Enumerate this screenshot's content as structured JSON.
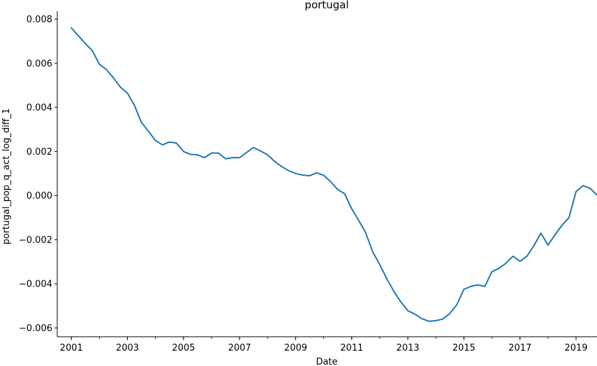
{
  "chart_data": {
    "type": "line",
    "title": "portugal",
    "xlabel": "Date",
    "ylabel": "portugal_pop_q_act_log_diff_1",
    "xlim": [
      "2000-07-01",
      "2019-10-01"
    ],
    "ylim": [
      -0.0064,
      0.0083
    ],
    "xticks": [
      "2001",
      "2003",
      "2005",
      "2007",
      "2009",
      "2011",
      "2013",
      "2015",
      "2017",
      "2019"
    ],
    "yticks": [
      "−0.006",
      "−0.004",
      "−0.002",
      "0.000",
      "0.002",
      "0.004",
      "0.006",
      "0.008"
    ],
    "grid": false,
    "line_color": "#1f77b4",
    "series": [
      {
        "x": [
          "2001-01-01",
          "2001-04-01",
          "2001-07-01",
          "2001-10-01",
          "2002-01-01",
          "2002-04-01",
          "2002-07-01",
          "2002-10-01",
          "2003-01-01",
          "2003-04-01",
          "2003-07-01",
          "2003-10-01",
          "2004-01-01",
          "2004-04-01",
          "2004-07-01",
          "2004-10-01",
          "2005-01-01",
          "2005-04-01",
          "2005-07-01",
          "2005-10-01",
          "2006-01-01",
          "2006-04-01",
          "2006-07-01",
          "2006-10-01",
          "2007-01-01",
          "2007-04-01",
          "2007-07-01",
          "2007-10-01",
          "2008-01-01",
          "2008-04-01",
          "2008-07-01",
          "2008-10-01",
          "2009-01-01",
          "2009-04-01",
          "2009-07-01",
          "2009-10-01",
          "2010-01-01",
          "2010-04-01",
          "2010-07-01",
          "2010-10-01",
          "2011-01-01",
          "2011-04-01",
          "2011-07-01",
          "2011-10-01",
          "2012-01-01",
          "2012-04-01",
          "2012-07-01",
          "2012-10-01",
          "2013-01-01",
          "2013-04-01",
          "2013-07-01",
          "2013-10-01",
          "2014-01-01",
          "2014-04-01",
          "2014-07-01",
          "2014-10-01",
          "2015-01-01",
          "2015-04-01",
          "2015-07-01",
          "2015-10-01",
          "2016-01-01",
          "2016-04-01",
          "2016-07-01",
          "2016-10-01",
          "2017-01-01",
          "2017-04-01",
          "2017-07-01",
          "2017-10-01",
          "2018-01-01",
          "2018-04-01",
          "2018-07-01",
          "2018-10-01",
          "2019-01-01",
          "2019-04-01",
          "2019-07-01",
          "2019-10-01"
        ],
        "values": [
          0.0076,
          0.00725,
          0.0069,
          0.00657,
          0.00595,
          0.00572,
          0.00535,
          0.00492,
          0.00465,
          0.0041,
          0.00333,
          0.00292,
          0.0025,
          0.0023,
          0.00243,
          0.00238,
          0.002,
          0.00187,
          0.00185,
          0.00172,
          0.00193,
          0.00193,
          0.00167,
          0.00172,
          0.00172,
          0.00195,
          0.00218,
          0.00202,
          0.00185,
          0.00155,
          0.00132,
          0.00113,
          0.001,
          0.00093,
          0.0009,
          0.00103,
          0.00092,
          0.00063,
          0.00028,
          8e-05,
          -0.0006,
          -0.00112,
          -0.00168,
          -0.00255,
          -0.00313,
          -0.00377,
          -0.00433,
          -0.00482,
          -0.00522,
          -0.00537,
          -0.00558,
          -0.0057,
          -0.00567,
          -0.0056,
          -0.00535,
          -0.00495,
          -0.00425,
          -0.00412,
          -0.00405,
          -0.00412,
          -0.00345,
          -0.0033,
          -0.00307,
          -0.00275,
          -0.00298,
          -0.00275,
          -0.00227,
          -0.0017,
          -0.00225,
          -0.00178,
          -0.00135,
          -0.001,
          0.00018,
          0.00045,
          0.00033,
          3e-05
        ]
      }
    ]
  }
}
